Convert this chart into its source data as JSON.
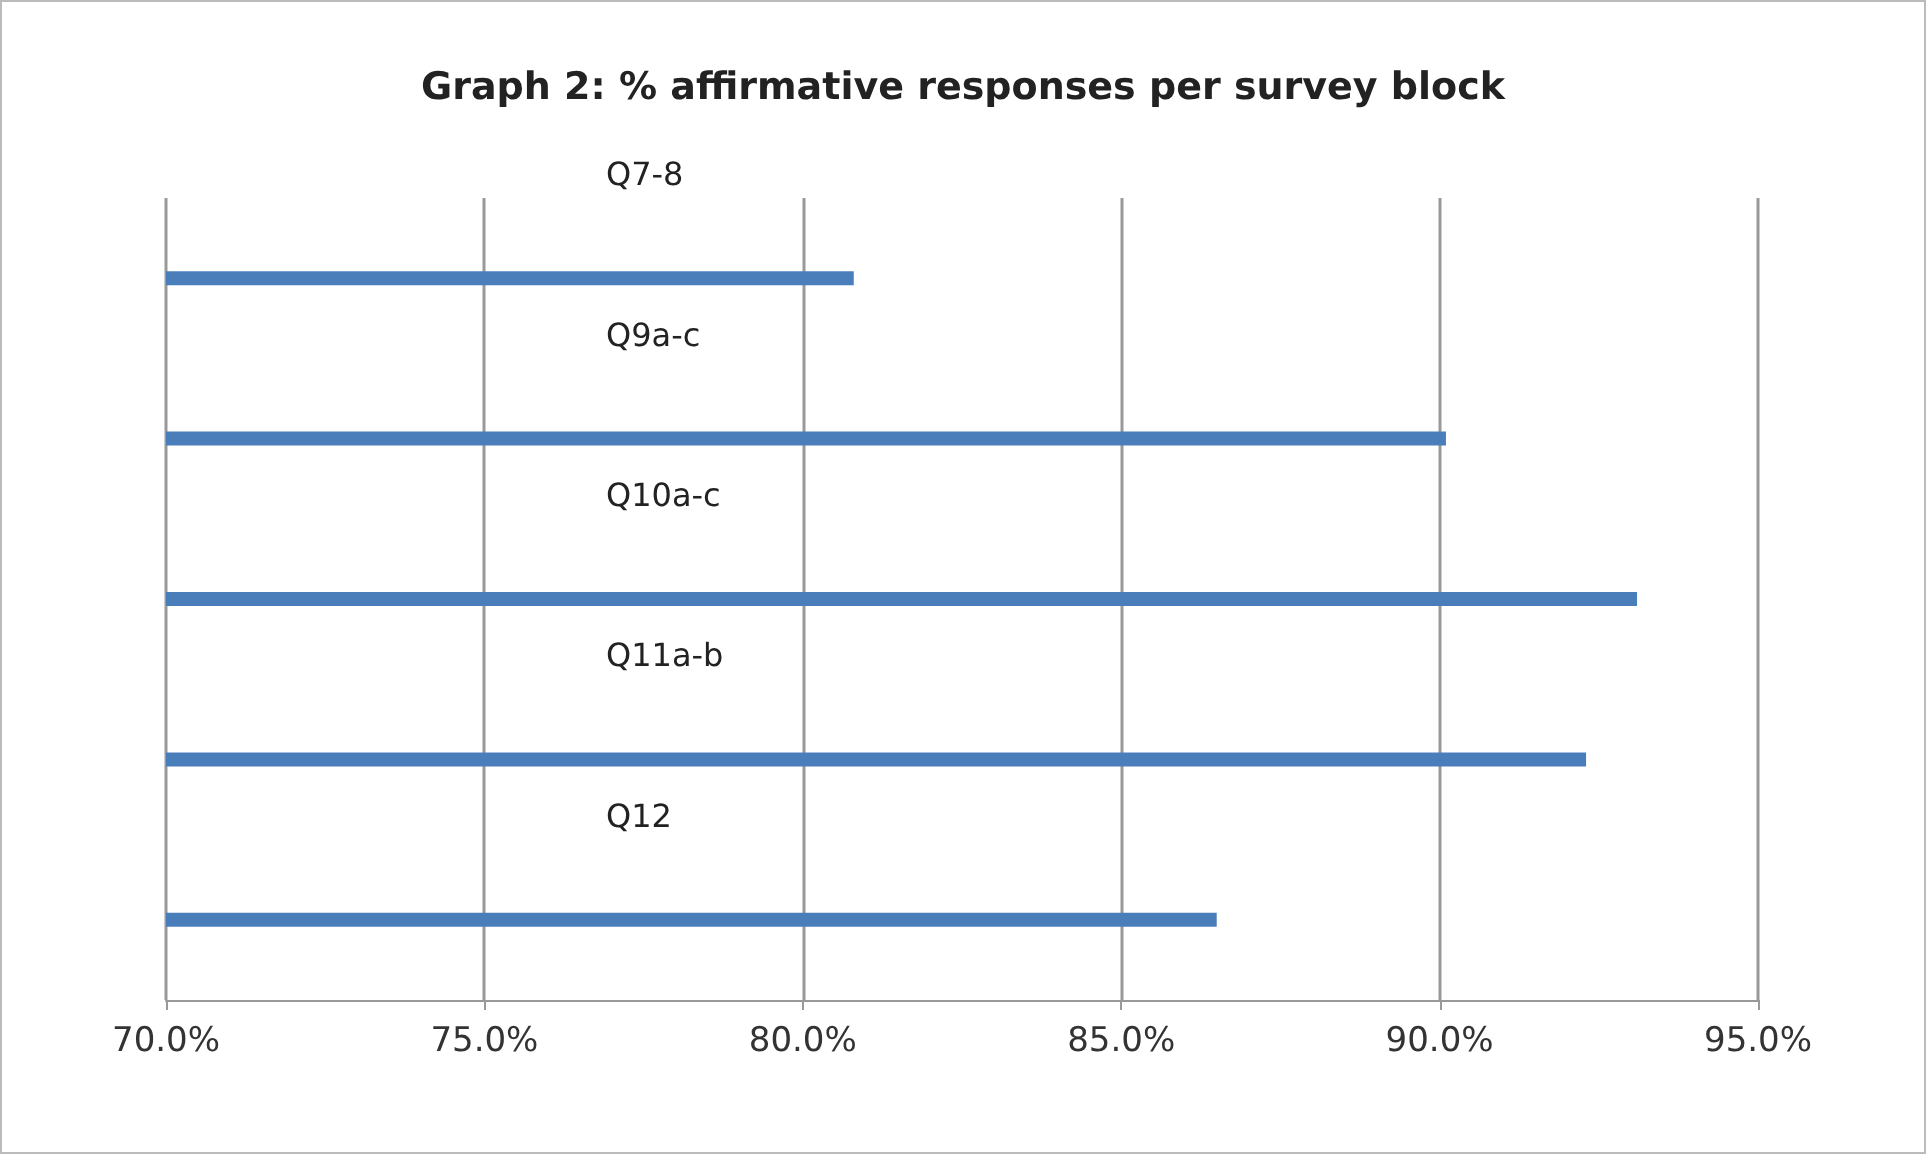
{
  "chart_data": {
    "type": "bar",
    "orientation": "horizontal",
    "title": "Graph 2: % affirmative responses per survey block",
    "categories": [
      "Q7-8",
      "Q9a-c",
      "Q10a-c",
      "Q11a-b",
      "Q12"
    ],
    "values": [
      80.8,
      90.1,
      93.1,
      92.3,
      86.5
    ],
    "color": "#4a7ebb",
    "xlim": [
      70,
      95
    ],
    "xticks": [
      {
        "value": 70,
        "label": "70.0%"
      },
      {
        "value": 75,
        "label": "75.0%"
      },
      {
        "value": 80,
        "label": "80.0%"
      },
      {
        "value": 85,
        "label": "85.0%"
      },
      {
        "value": 90,
        "label": "90.0%"
      },
      {
        "value": 95,
        "label": "95.0%"
      }
    ],
    "grid": "x"
  }
}
